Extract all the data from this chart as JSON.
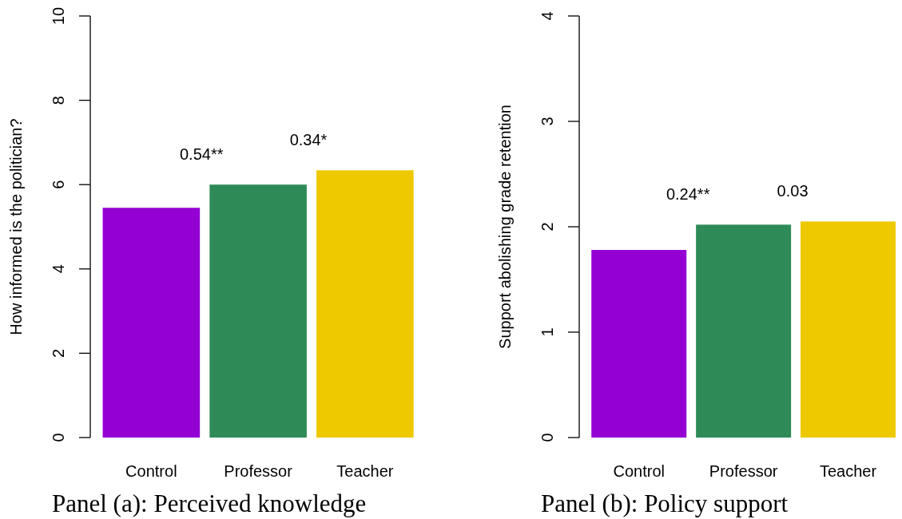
{
  "chart_data": [
    {
      "type": "bar",
      "title": "Panel (a): Perceived knowledge",
      "ylabel": "How informed is the politician?",
      "categories": [
        "Control",
        "Professor",
        "Teacher"
      ],
      "values": [
        5.45,
        6.0,
        6.34
      ],
      "colors": [
        "#9400d3",
        "#2e8b57",
        "#eec900"
      ],
      "ylim": [
        0,
        10
      ],
      "yticks": [
        0,
        2,
        4,
        6,
        8,
        10
      ],
      "annotations": [
        "0.54**",
        "0.34*"
      ]
    },
    {
      "type": "bar",
      "title": "Panel (b): Policy support",
      "ylabel": "Support abolishing grade retention",
      "categories": [
        "Control",
        "Professor",
        "Teacher"
      ],
      "values": [
        1.78,
        2.02,
        2.05
      ],
      "colors": [
        "#9400d3",
        "#2e8b57",
        "#eec900"
      ],
      "ylim": [
        0,
        4
      ],
      "yticks": [
        0,
        1,
        2,
        3,
        4
      ],
      "annotations": [
        "0.24**",
        "0.03"
      ]
    }
  ]
}
